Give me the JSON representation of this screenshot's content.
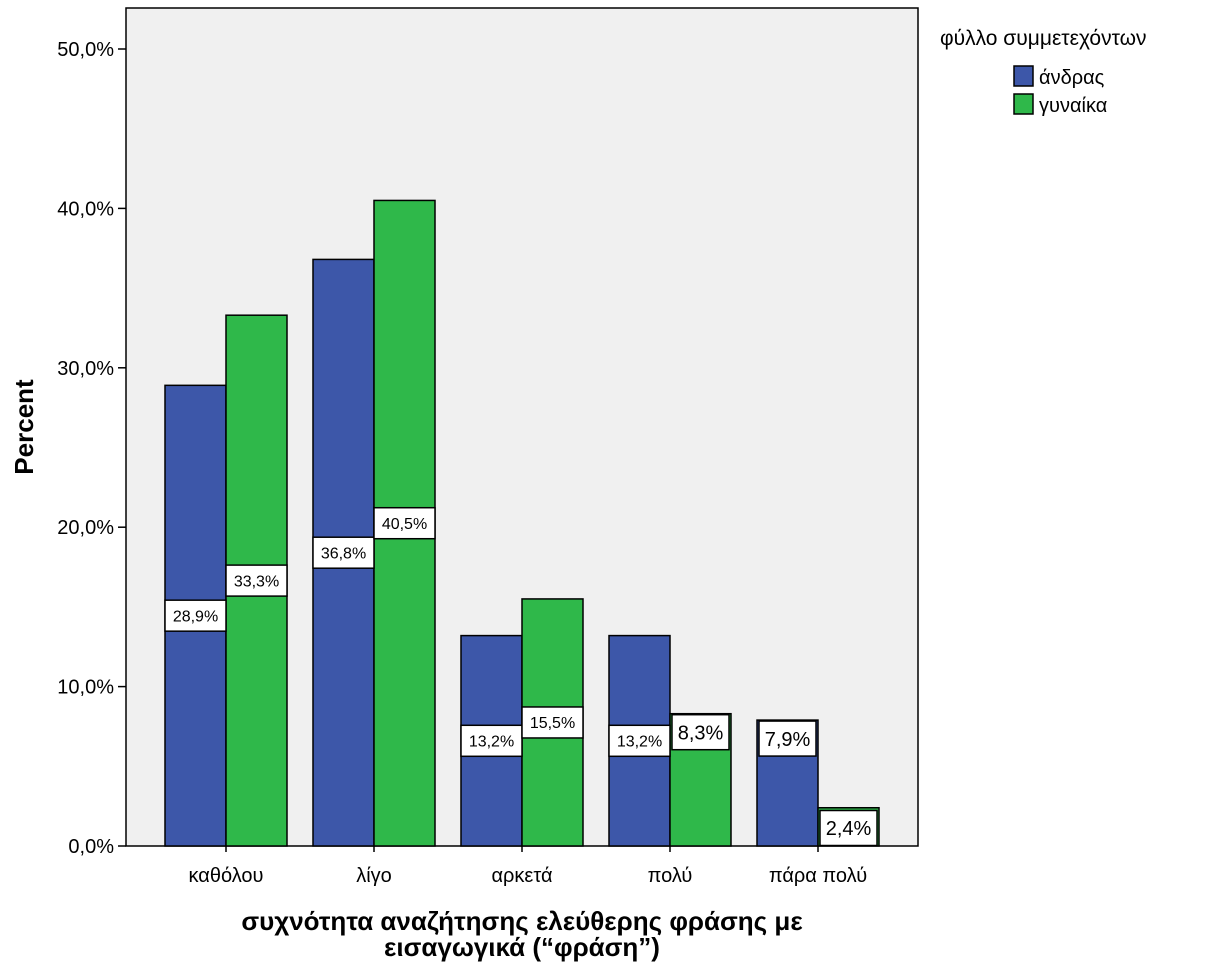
{
  "chart_data": {
    "type": "bar",
    "categories": [
      "καθόλου",
      "λίγο",
      "αρκετά",
      "πολύ",
      "πάρα πολύ"
    ],
    "series": [
      {
        "name": "άνδρας",
        "color": "#3d57a9",
        "values": [
          28.9,
          36.8,
          13.2,
          13.2,
          7.9
        ],
        "labels": [
          "28,9%",
          "36,8%",
          "13,2%",
          "13,2%",
          "7,9%"
        ]
      },
      {
        "name": "γυναίκα",
        "color": "#2fb84a",
        "values": [
          33.3,
          40.5,
          15.5,
          8.3,
          2.4
        ],
        "labels": [
          "33,3%",
          "40,5%",
          "15,5%",
          "8,3%",
          "2,4%"
        ]
      }
    ],
    "ylim": [
      0,
      50
    ],
    "yticks": [
      0,
      10,
      20,
      30,
      40,
      50
    ],
    "ytick_labels": [
      "0,0%",
      "10,0%",
      "20,0%",
      "30,0%",
      "40,0%",
      "50,0%"
    ],
    "ylabel": "Percent",
    "xlabel": [
      "συχνότητα αναζήτησης ελεύθερης φράσης με",
      "εισαγωγικά (“φράση”)"
    ],
    "legend_title": "φύλλο συμμετεχόντων",
    "legend_position": "top-right, outside plot",
    "plot_background": "#f0f0f0",
    "grid": false
  }
}
